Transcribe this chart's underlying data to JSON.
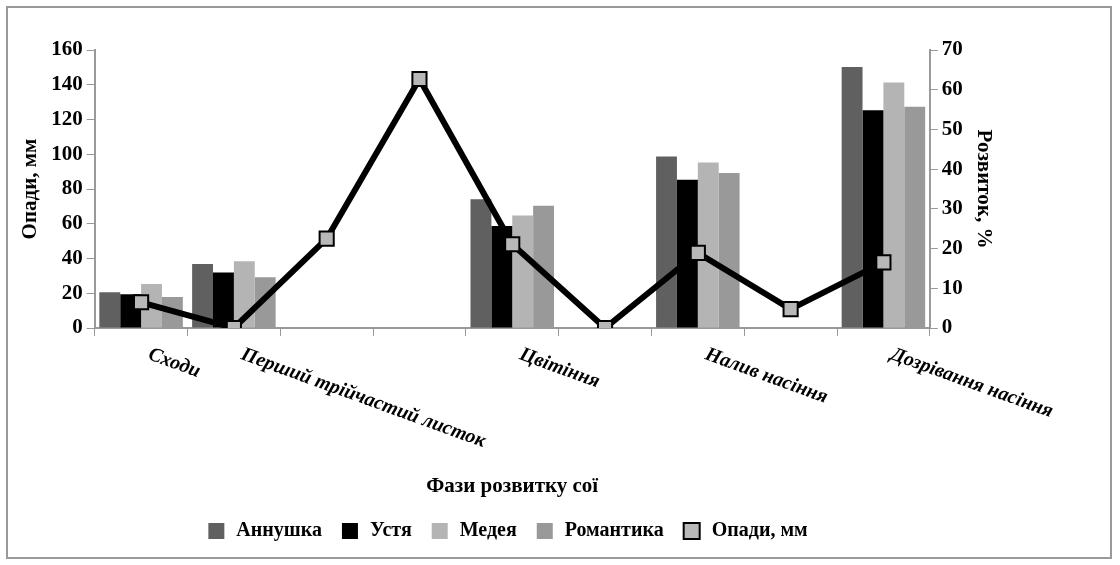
{
  "chart_data": {
    "type": "bar",
    "categories": [
      "Сходи",
      "Перший трійчастий листок",
      null,
      null,
      "Цвітіння",
      null,
      "Налив насіння",
      null,
      "Дозрівання насіння"
    ],
    "xlabel": "Фази розвитку сої",
    "ylabel": "Опади, мм",
    "y2label": "Розвиток, %",
    "series": [
      {
        "name": "Аннушка",
        "color": "#606060",
        "axis": "y2",
        "values": [
          9.0,
          16.1,
          null,
          null,
          32.4,
          null,
          43.2,
          null,
          65.7
        ]
      },
      {
        "name": "Устя",
        "color": "#000000",
        "axis": "y2",
        "values": [
          8.5,
          14.0,
          null,
          null,
          25.7,
          null,
          37.3,
          null,
          54.8
        ]
      },
      {
        "name": "Медея",
        "color": "#b4b4b4",
        "axis": "y2",
        "values": [
          11.1,
          16.8,
          null,
          null,
          28.3,
          null,
          41.7,
          null,
          61.8
        ]
      },
      {
        "name": "Романтика",
        "color": "#999999",
        "axis": "y2",
        "values": [
          7.8,
          12.8,
          null,
          null,
          30.8,
          null,
          39.0,
          null,
          55.7
        ]
      },
      {
        "name": "Опади, мм",
        "type": "line",
        "color": "#000000",
        "marker": "square",
        "values": [
          14.8,
          0,
          51.4,
          143.3,
          48.2,
          0,
          43.2,
          10.9,
          37.8
        ]
      }
    ],
    "ylim": [
      0,
      160
    ],
    "yticks": [
      0,
      20,
      40,
      60,
      80,
      100,
      120,
      140,
      160
    ],
    "y2lim": [
      0,
      70
    ],
    "y2ticks": [
      0,
      10,
      20,
      30,
      40,
      50,
      60,
      70
    ],
    "grid": false,
    "legend": "bottom"
  }
}
